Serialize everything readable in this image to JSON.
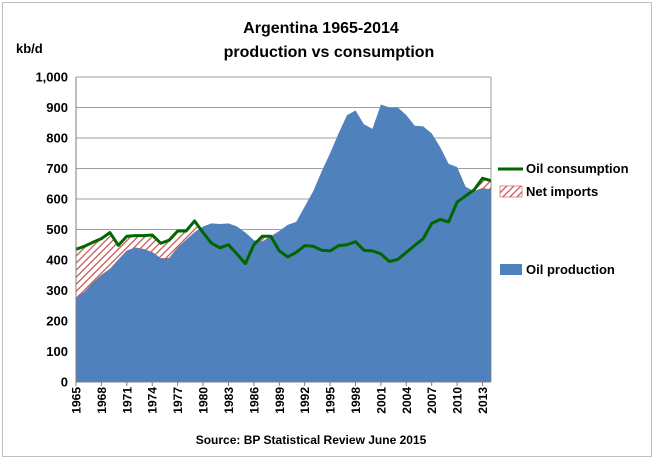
{
  "chart_data": {
    "type": "area",
    "title_line1": "Argentina 1965-2014",
    "title_line2": "production vs consumption",
    "ylabel": "kb/d",
    "source": "Source: BP Statistical Review  June 2015",
    "ylim": [
      0,
      1000
    ],
    "yticks": [
      "0",
      "100",
      "200",
      "300",
      "400",
      "500",
      "600",
      "700",
      "800",
      "900",
      "1,000"
    ],
    "xticks": [
      "1965",
      "1968",
      "1971",
      "1974",
      "1977",
      "1980",
      "1983",
      "1986",
      "1989",
      "1992",
      "1995",
      "1998",
      "2001",
      "2004",
      "2007",
      "2010",
      "2013"
    ],
    "x": [
      1965,
      1966,
      1967,
      1968,
      1969,
      1970,
      1971,
      1972,
      1973,
      1974,
      1975,
      1976,
      1977,
      1978,
      1979,
      1980,
      1981,
      1982,
      1983,
      1984,
      1985,
      1986,
      1987,
      1988,
      1989,
      1990,
      1991,
      1992,
      1993,
      1994,
      1995,
      1996,
      1997,
      1998,
      1999,
      2000,
      2001,
      2002,
      2003,
      2004,
      2005,
      2006,
      2007,
      2008,
      2009,
      2010,
      2011,
      2012,
      2013,
      2014
    ],
    "series": [
      {
        "name": "Oil production",
        "color": "#4f81bd",
        "values": [
          275,
          295,
          325,
          350,
          370,
          400,
          430,
          440,
          435,
          425,
          405,
          405,
          440,
          465,
          490,
          510,
          520,
          518,
          520,
          510,
          490,
          465,
          460,
          478,
          495,
          515,
          525,
          575,
          625,
          690,
          750,
          815,
          875,
          890,
          845,
          830,
          910,
          900,
          900,
          875,
          840,
          838,
          815,
          770,
          715,
          705,
          640,
          625,
          635,
          630
        ]
      },
      {
        "name": "Oil consumption",
        "color": "#006600",
        "values": [
          435,
          445,
          458,
          470,
          490,
          448,
          478,
          480,
          480,
          482,
          455,
          465,
          495,
          495,
          528,
          490,
          455,
          440,
          450,
          420,
          388,
          450,
          478,
          478,
          430,
          410,
          425,
          447,
          445,
          432,
          430,
          447,
          450,
          460,
          432,
          430,
          420,
          395,
          402,
          425,
          448,
          470,
          520,
          533,
          525,
          590,
          610,
          630,
          668,
          660
        ]
      },
      {
        "name": "Net imports",
        "color": "#c0504d"
      }
    ],
    "legend": "right"
  }
}
